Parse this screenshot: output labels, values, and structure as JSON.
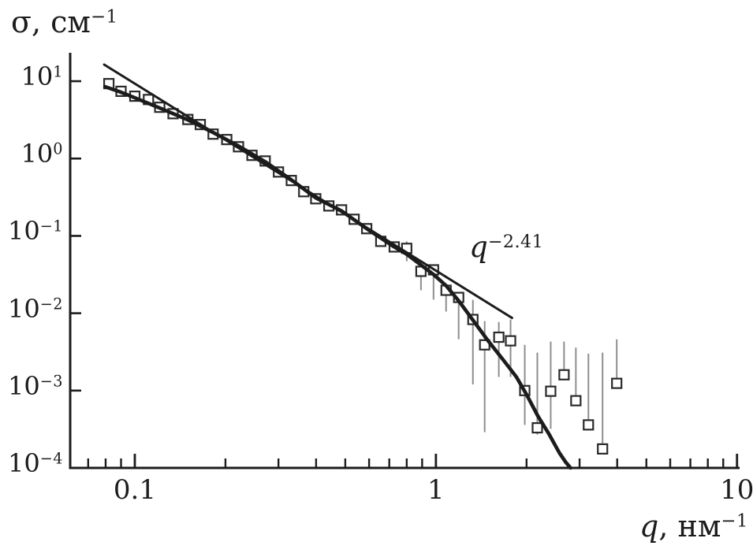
{
  "colors": {
    "line": "#1c1c1c",
    "marker_stroke": "#2a2a2a",
    "error_bar": "#8e8e8e",
    "background": "#ffffff"
  },
  "chart_data": {
    "type": "scatter",
    "title": "",
    "ylabel": {
      "text": "σ, см",
      "exponent": "−1"
    },
    "xlabel": {
      "variable": "q",
      "rest": ", нм",
      "exponent": "−1"
    },
    "x_axis": {
      "scale": "log",
      "min": 0.061,
      "max": 10.2,
      "major_ticks": [
        0.1,
        1,
        10
      ],
      "major_labels": [
        "0.1",
        "1",
        "10"
      ],
      "minor_ticks": [
        0.07,
        0.08,
        0.09,
        0.2,
        0.3,
        0.4,
        0.5,
        0.6,
        0.7,
        0.8,
        0.9,
        2,
        3,
        4,
        5,
        6,
        7,
        8,
        9
      ]
    },
    "y_axis": {
      "scale": "log",
      "min": 0.0001,
      "max": 23.3,
      "base_label": "10",
      "major_ticks": [
        {
          "value": 10,
          "exp_label": "1"
        },
        {
          "value": 1,
          "exp_label": "0"
        },
        {
          "value": 0.1,
          "exp_label": "−1"
        },
        {
          "value": 0.01,
          "exp_label": "−2"
        },
        {
          "value": 0.001,
          "exp_label": "−3"
        },
        {
          "value": 0.0001,
          "exp_label": "−4"
        }
      ]
    },
    "annotation": {
      "base": "q",
      "exponent": "−2.41",
      "anchor_q": 1.29,
      "anchor_sigma": 0.118
    },
    "series": {
      "data_points": [
        {
          "q": 0.082,
          "sigma": 9.3,
          "err": null
        },
        {
          "q": 0.09,
          "sigma": 7.4,
          "err": null
        },
        {
          "q": 0.1,
          "sigma": 6.4,
          "err": null
        },
        {
          "q": 0.111,
          "sigma": 5.8,
          "err": null
        },
        {
          "q": 0.121,
          "sigma": 4.6,
          "err": null
        },
        {
          "q": 0.134,
          "sigma": 3.8,
          "err": null
        },
        {
          "q": 0.15,
          "sigma": 3.2,
          "err": null
        },
        {
          "q": 0.165,
          "sigma": 2.75,
          "err": null
        },
        {
          "q": 0.182,
          "sigma": 2.07,
          "err": null
        },
        {
          "q": 0.202,
          "sigma": 1.76,
          "err": null
        },
        {
          "q": 0.221,
          "sigma": 1.42,
          "err": null
        },
        {
          "q": 0.245,
          "sigma": 1.1,
          "err": null
        },
        {
          "q": 0.271,
          "sigma": 0.93,
          "err": null
        },
        {
          "q": 0.3,
          "sigma": 0.67,
          "err": null
        },
        {
          "q": 0.331,
          "sigma": 0.52,
          "err": null
        },
        {
          "q": 0.364,
          "sigma": 0.373,
          "err": null
        },
        {
          "q": 0.399,
          "sigma": 0.302,
          "err": null
        },
        {
          "q": 0.441,
          "sigma": 0.244,
          "err": null
        },
        {
          "q": 0.486,
          "sigma": 0.217,
          "err": null
        },
        {
          "q": 0.535,
          "sigma": 0.164,
          "err": null
        },
        {
          "q": 0.589,
          "sigma": 0.124,
          "err": null
        },
        {
          "q": 0.656,
          "sigma": 0.085,
          "err": null
        },
        {
          "q": 0.727,
          "sigma": 0.072,
          "err": null
        },
        {
          "q": 0.8,
          "sigma": 0.069,
          "err": [
            0.047,
            0.085
          ]
        },
        {
          "q": 0.892,
          "sigma": 0.0348,
          "err": [
            0.0198,
            0.04
          ]
        },
        {
          "q": 0.982,
          "sigma": 0.0364,
          "err": [
            0.015,
            0.037
          ]
        },
        {
          "q": 1.081,
          "sigma": 0.0198,
          "err": [
            0.0105,
            0.0227
          ]
        },
        {
          "q": 1.19,
          "sigma": 0.016,
          "err": [
            0.0046,
            0.018
          ]
        },
        {
          "q": 1.327,
          "sigma": 0.0083,
          "err": [
            0.0012,
            0.0149
          ]
        },
        {
          "q": 1.452,
          "sigma": 0.0039,
          "err": [
            0.00029,
            0.0079
          ]
        },
        {
          "q": 1.618,
          "sigma": 0.0049,
          "err": [
            0.0015,
            0.0077
          ]
        },
        {
          "q": 1.77,
          "sigma": 0.0044,
          "err": [
            0.0015,
            0.0083
          ]
        },
        {
          "q": 1.973,
          "sigma": 0.001,
          "err": [
            0.00036,
            0.0039
          ]
        },
        {
          "q": 2.172,
          "sigma": 0.00033,
          "err": [
            0.00027,
            0.0031
          ]
        },
        {
          "q": 2.406,
          "sigma": 0.00098,
          "err": [
            0.00032,
            0.0043
          ]
        },
        {
          "q": 2.664,
          "sigma": 0.0016,
          "err": [
            0.0016,
            0.0043
          ]
        },
        {
          "q": 2.916,
          "sigma": 0.00074,
          "err": [
            0.00074,
            0.0036
          ]
        },
        {
          "q": 3.21,
          "sigma": 0.00036,
          "err": [
            0.00035,
            0.003
          ]
        },
        {
          "q": 3.577,
          "sigma": 0.000176,
          "err": [
            0.000176,
            0.0031
          ]
        },
        {
          "q": 3.986,
          "sigma": 0.00124,
          "err": [
            0.00124,
            0.0046
          ]
        }
      ],
      "fit_curve": [
        [
          0.0796,
          8.5
        ],
        [
          0.09,
          7.2
        ],
        [
          0.1,
          6.1
        ],
        [
          0.121,
          4.5
        ],
        [
          0.15,
          3.17
        ],
        [
          0.182,
          2.17
        ],
        [
          0.221,
          1.45
        ],
        [
          0.271,
          0.91
        ],
        [
          0.331,
          0.53
        ],
        [
          0.399,
          0.31
        ],
        [
          0.486,
          0.21
        ],
        [
          0.589,
          0.124
        ],
        [
          0.727,
          0.072
        ],
        [
          0.8,
          0.058
        ],
        [
          0.892,
          0.042
        ],
        [
          0.982,
          0.0317
        ],
        [
          1.081,
          0.0227
        ],
        [
          1.19,
          0.0145
        ],
        [
          1.327,
          0.00815
        ],
        [
          1.49,
          0.0044
        ],
        [
          1.686,
          0.0024
        ],
        [
          1.85,
          0.0015
        ],
        [
          2.0,
          0.00089
        ],
        [
          2.18,
          0.00047
        ],
        [
          2.38,
          0.00027
        ],
        [
          2.57,
          0.000157
        ],
        [
          2.7,
          0.000118
        ],
        [
          2.8,
          0.0001
        ]
      ],
      "power_law_line": {
        "q1": 0.0791,
        "sigma1": 16.4,
        "q2": 1.79,
        "sigma2": 0.0087
      }
    }
  }
}
